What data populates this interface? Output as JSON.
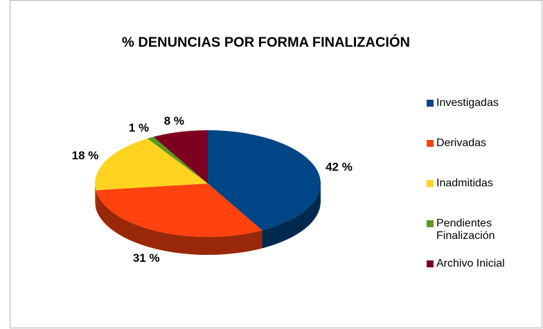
{
  "chart_data": {
    "type": "pie",
    "title": "% DENUNCIAS POR FORMA FINALIZACIÓN",
    "categories": [
      "Investigadas",
      "Derivadas",
      "Inadmitidas",
      "Pendientes Finalización",
      "Archivo Inicial"
    ],
    "values": [
      42,
      31,
      18,
      1,
      8
    ],
    "value_labels": [
      "42 %",
      "31 %",
      "18 %",
      "1 %",
      "8 %"
    ],
    "colors": [
      "#004586",
      "#ff420e",
      "#ffd320",
      "#579d1c",
      "#7e0021"
    ],
    "legend": "right"
  }
}
